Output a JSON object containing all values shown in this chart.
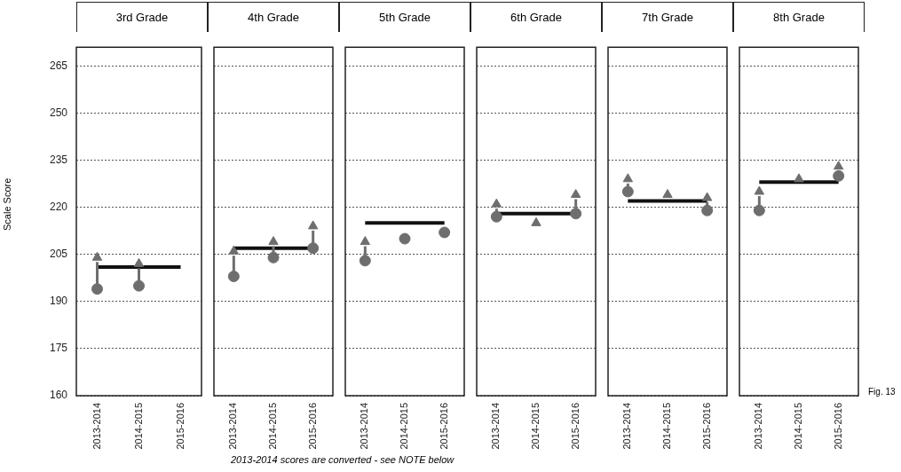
{
  "chart_data": [
    {
      "type": "scatter",
      "title": "3rd Grade",
      "ylabel": "Scale Score",
      "categories": [
        "2013-2014",
        "2014-2015",
        "2015-2016"
      ],
      "ylim": [
        160,
        271
      ],
      "yticks": [
        160,
        175,
        190,
        205,
        220,
        235,
        250,
        265
      ],
      "grid": "y",
      "legend": false,
      "annotations": [
        "2013-2014  scores are converted - see NOTE below",
        "Fig. 13"
      ],
      "series": [
        {
          "type": "scatter",
          "marker": "circle",
          "color": "#6e6e6e",
          "values": [
            194,
            195,
            null
          ]
        },
        {
          "type": "scatter",
          "marker": "triangle",
          "color": "#6e6e6e",
          "values": [
            204,
            202,
            null
          ]
        },
        {
          "type": "line",
          "marker": "none",
          "color": "#111111",
          "values": [
            201,
            201,
            201
          ]
        }
      ]
    },
    {
      "type": "scatter",
      "title": "4th Grade",
      "categories": [
        "2013-2014",
        "2014-2015",
        "2015-2016"
      ],
      "ylim": [
        160,
        271
      ],
      "yticks": [
        160,
        175,
        190,
        205,
        220,
        235,
        250,
        265
      ],
      "grid": "y",
      "legend": false,
      "tick_labels": "x",
      "series": [
        {
          "type": "scatter",
          "marker": "circle",
          "color": "#6e6e6e",
          "values": [
            198,
            204,
            207
          ]
        },
        {
          "type": "scatter",
          "marker": "triangle",
          "color": "#6e6e6e",
          "values": [
            206,
            209,
            214
          ]
        },
        {
          "type": "line",
          "marker": "none",
          "color": "#111111",
          "values": [
            207,
            207,
            207
          ]
        }
      ]
    },
    {
      "type": "scatter",
      "title": "5th Grade",
      "categories": [
        "2013-2014",
        "2014-2015",
        "2015-2016"
      ],
      "ylim": [
        160,
        271
      ],
      "yticks": [
        160,
        175,
        190,
        205,
        220,
        235,
        250,
        265
      ],
      "grid": "y",
      "legend": false,
      "tick_labels": "x",
      "series": [
        {
          "type": "scatter",
          "marker": "circle",
          "color": "#6e6e6e",
          "values": [
            203,
            210,
            212
          ]
        },
        {
          "type": "scatter",
          "marker": "triangle",
          "color": "#6e6e6e",
          "values": [
            209,
            null,
            null
          ]
        },
        {
          "type": "line",
          "marker": "none",
          "color": "#111111",
          "values": [
            215,
            215,
            215
          ]
        }
      ]
    },
    {
      "type": "scatter",
      "title": "6th Grade",
      "categories": [
        "2013-2014",
        "2014-2015",
        "2015-2016"
      ],
      "ylim": [
        160,
        271
      ],
      "yticks": [
        160,
        175,
        190,
        205,
        220,
        235,
        250,
        265
      ],
      "grid": "y",
      "legend": false,
      "tick_labels": "x",
      "series": [
        {
          "type": "scatter",
          "marker": "circle",
          "color": "#6e6e6e",
          "values": [
            217,
            null,
            218
          ]
        },
        {
          "type": "scatter",
          "marker": "triangle",
          "color": "#6e6e6e",
          "values": [
            221,
            215,
            224
          ]
        },
        {
          "type": "line",
          "marker": "none",
          "color": "#111111",
          "values": [
            218,
            218,
            218
          ]
        }
      ]
    },
    {
      "type": "scatter",
      "title": "7th Grade",
      "categories": [
        "2013-2014",
        "2014-2015",
        "2015-2016"
      ],
      "ylim": [
        160,
        271
      ],
      "yticks": [
        160,
        175,
        190,
        205,
        220,
        235,
        250,
        265
      ],
      "grid": "y",
      "legend": false,
      "tick_labels": "x",
      "series": [
        {
          "type": "scatter",
          "marker": "circle",
          "color": "#6e6e6e",
          "values": [
            225,
            null,
            219
          ]
        },
        {
          "type": "scatter",
          "marker": "triangle",
          "color": "#6e6e6e",
          "values": [
            229,
            224,
            223
          ]
        },
        {
          "type": "line",
          "marker": "none",
          "color": "#111111",
          "values": [
            222,
            222,
            222
          ]
        }
      ]
    },
    {
      "type": "scatter",
      "title": "8th Grade",
      "categories": [
        "2013-2014",
        "2014-2015",
        "2015-2016"
      ],
      "ylim": [
        160,
        271
      ],
      "yticks": [
        160,
        175,
        190,
        205,
        220,
        235,
        250,
        265
      ],
      "grid": "y",
      "legend": false,
      "tick_labels": "x",
      "series": [
        {
          "type": "scatter",
          "marker": "circle",
          "color": "#6e6e6e",
          "values": [
            219,
            null,
            230
          ]
        },
        {
          "type": "scatter",
          "marker": "triangle",
          "color": "#6e6e6e",
          "values": [
            225,
            229,
            233
          ]
        },
        {
          "type": "line",
          "marker": "none",
          "color": "#111111",
          "values": [
            228,
            228,
            228
          ]
        }
      ]
    }
  ]
}
